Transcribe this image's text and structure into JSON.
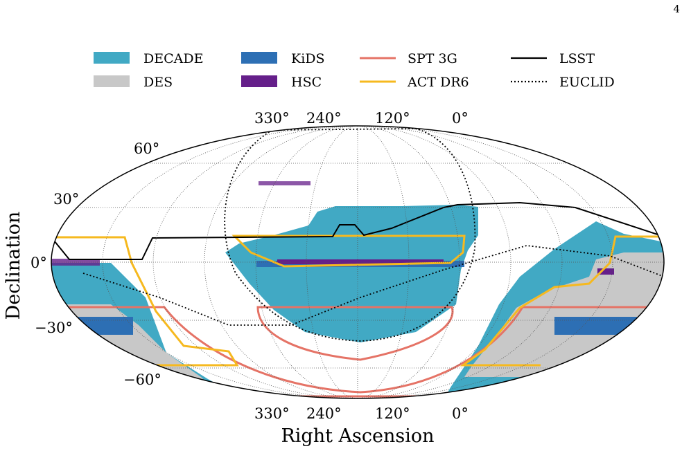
{
  "page_number": "4",
  "chart_data": {
    "type": "map",
    "projection": "mollweide",
    "xlabel": "Right Ascension",
    "ylabel": "Declination",
    "ra_tick_labels": [
      "330°",
      "240°",
      "120°",
      "0°"
    ],
    "dec_tick_labels": [
      "60°",
      "30°",
      "0°",
      "−30°",
      "−60°"
    ],
    "grid": true,
    "legend_position": "top",
    "legend": [
      {
        "name": "DECADE",
        "kind": "patch",
        "color": "#41a9c4"
      },
      {
        "name": "DES",
        "kind": "patch",
        "color": "#c8c8c8"
      },
      {
        "name": "KiDS",
        "kind": "patch",
        "color": "#2d6fb4"
      },
      {
        "name": "HSC",
        "kind": "patch",
        "color": "#651f8a"
      },
      {
        "name": "SPT 3G",
        "kind": "line",
        "color": "#e57366"
      },
      {
        "name": "ACT DR6",
        "kind": "line",
        "color": "#f6b91f"
      },
      {
        "name": "LSST",
        "kind": "line",
        "color": "#000000"
      },
      {
        "name": "EUCLID",
        "kind": "dotted-line",
        "color": "#000000"
      }
    ]
  }
}
